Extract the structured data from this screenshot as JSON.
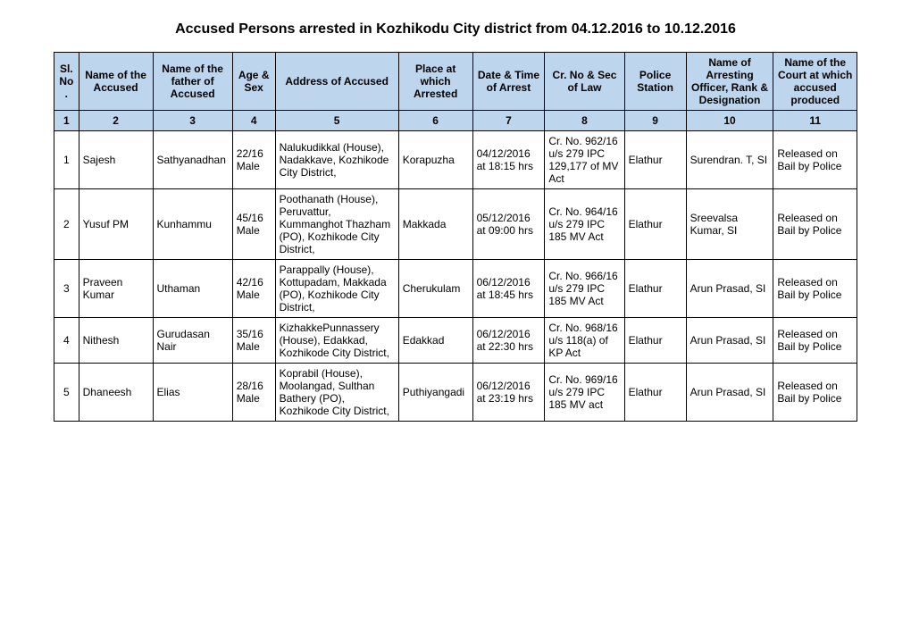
{
  "title": "Accused Persons arrested in   Kozhikodu City  district from   04.12.2016 to 10.12.2016",
  "columns": [
    "Sl. No.",
    "Name of the Accused",
    "Name of the father of Accused",
    "Age & Sex",
    "Address of Accused",
    "Place at which Arrested",
    "Date & Time of Arrest",
    "Cr. No & Sec of Law",
    "Police Station",
    "Name of Arresting Officer, Rank & Designation",
    "Name of the Court at which accused produced"
  ],
  "colnums": [
    "1",
    "2",
    "3",
    "4",
    "5",
    "6",
    "7",
    "8",
    "9",
    "10",
    "11"
  ],
  "rows": [
    {
      "sl": "1",
      "name": "Sajesh",
      "father": "Sathyanadhan",
      "age": "22/16 Male",
      "addr": "Nalukudikkal (House), Nadakkave, Kozhikode City District,",
      "place": "Korapuzha",
      "date": "04/12/2016 at  18:15 hrs",
      "crno": "Cr. No. 962/16 u/s 279 IPC 129,177 of MV Act",
      "station": "Elathur",
      "officer": "Surendran. T, SI",
      "court": "Released on Bail by Police"
    },
    {
      "sl": "2",
      "name": "Yusuf PM",
      "father": "Kunhammu",
      "age": "45/16 Male",
      "addr": "Poothanath (House), Peruvattur, Kummanghot Thazham (PO), Kozhikode City District,",
      "place": "Makkada",
      "date": "05/12/2016 at  09:00 hrs",
      "crno": "Cr. No. 964/16 u/s 279 IPC 185 MV Act",
      "station": "Elathur",
      "officer": "Sreevalsa Kumar,  SI",
      "court": "Released on Bail by Police"
    },
    {
      "sl": "3",
      "name": "Praveen Kumar",
      "father": "Uthaman",
      "age": "42/16 Male",
      "addr": "Parappally (House), Kottupadam, Makkada (PO), Kozhikode City District,",
      "place": "Cherukulam",
      "date": "06/12/2016 at  18:45 hrs",
      "crno": "Cr. No. 966/16 u/s 279 IPC 185 MV Act",
      "station": "Elathur",
      "officer": "Arun Prasad, SI",
      "court": "Released on Bail by Police"
    },
    {
      "sl": "4",
      "name": "Nithesh",
      "father": "Gurudasan Nair",
      "age": "35/16 Male",
      "addr": "KizhakkePunnassery (House), Edakkad, Kozhikode City District,",
      "place": "Edakkad",
      "date": "06/12/2016 at  22:30 hrs",
      "crno": "Cr. No. 968/16 u/s 118(a) of KP Act",
      "station": "Elathur",
      "officer": "Arun Prasad, SI",
      "court": "Released on Bail by Police"
    },
    {
      "sl": "5",
      "name": "Dhaneesh",
      "father": "Elias",
      "age": "28/16 Male",
      "addr": "Koprabil (House), Moolangad, Sulthan Bathery (PO), Kozhikode City District,",
      "place": "Puthiyangadi",
      "date": "06/12/2016 at  23:19 hrs",
      "crno": "Cr. No. 969/16 u/s 279 IPC 185 MV act",
      "station": "Elathur",
      "officer": "Arun Prasad, SI",
      "court": "Released on Bail by Police"
    }
  ]
}
